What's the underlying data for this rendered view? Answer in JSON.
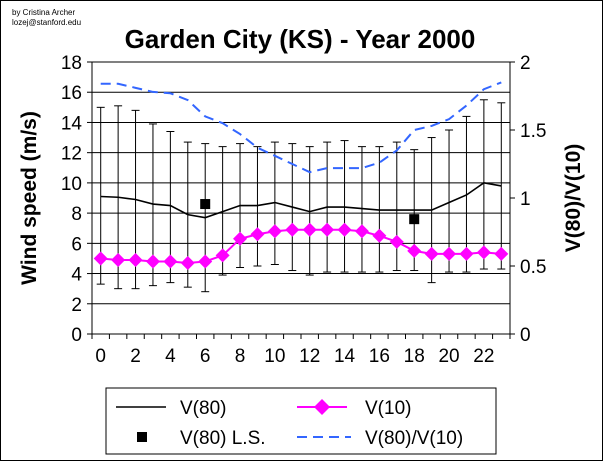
{
  "credits": [
    "by Cristina Archer",
    "lozej@stanford.edu"
  ],
  "chart_data": {
    "type": "line",
    "title": "Garden City (KS) - Year 2000",
    "ylabel": "Wind speed (m/s)",
    "y2label": "V(80)/V(10)",
    "ylim": [
      0,
      18
    ],
    "y_ticks": [
      0,
      2,
      4,
      6,
      8,
      10,
      12,
      14,
      16,
      18
    ],
    "y2lim": [
      0,
      2
    ],
    "y2_ticks": [
      "0",
      "0.5",
      "1",
      "1.5",
      "2"
    ],
    "x": [
      0,
      1,
      2,
      3,
      4,
      5,
      6,
      7,
      8,
      9,
      10,
      11,
      12,
      13,
      14,
      15,
      16,
      17,
      18,
      19,
      20,
      21,
      22,
      23
    ],
    "x_ticks": [
      0,
      2,
      4,
      6,
      8,
      10,
      12,
      14,
      16,
      18,
      20,
      22
    ],
    "grid": "horizontal",
    "legend_position": "bottom",
    "series": [
      {
        "name": "V(80)",
        "axis": "left",
        "style": "solid-line",
        "color": "#000000",
        "values": [
          9.1,
          9.05,
          8.9,
          8.6,
          8.5,
          7.9,
          7.7,
          8.1,
          8.5,
          8.5,
          8.7,
          8.4,
          8.1,
          8.4,
          8.4,
          8.3,
          8.2,
          8.2,
          8.2,
          8.2,
          8.7,
          9.2,
          10.0,
          9.8
        ],
        "error_high": [
          15.0,
          15.1,
          14.8,
          13.9,
          13.4,
          12.7,
          12.6,
          12.4,
          12.6,
          12.4,
          12.7,
          12.6,
          12.4,
          12.7,
          12.8,
          12.4,
          12.4,
          12.7,
          12.2,
          13.0,
          13.5,
          14.4,
          15.5,
          15.3
        ],
        "error_low": [
          3.3,
          3.0,
          3.0,
          3.2,
          3.4,
          3.1,
          2.8,
          3.9,
          4.4,
          4.5,
          4.6,
          4.2,
          3.9,
          4.1,
          4.1,
          4.1,
          4.1,
          4.2,
          4.2,
          3.4,
          4.1,
          4.1,
          4.3,
          4.3
        ]
      },
      {
        "name": "V(10)",
        "axis": "left",
        "style": "diamond-markers",
        "color": "#ff00ff",
        "values": [
          5.0,
          4.9,
          4.9,
          4.8,
          4.8,
          4.7,
          4.8,
          5.2,
          6.3,
          6.6,
          6.8,
          6.9,
          6.9,
          6.9,
          6.9,
          6.8,
          6.5,
          6.1,
          5.5,
          5.3,
          5.3,
          5.3,
          5.4,
          5.3
        ]
      },
      {
        "name": "V(80) L.S.",
        "axis": "left",
        "style": "square-markers",
        "color": "#000000",
        "points": [
          {
            "x": 6,
            "y": 8.6
          },
          {
            "x": 18,
            "y": 7.6
          }
        ]
      },
      {
        "name": "V(80)/V(10)",
        "axis": "right",
        "style": "dashed-line",
        "color": "#3366ff",
        "values": [
          1.84,
          1.84,
          1.81,
          1.78,
          1.77,
          1.72,
          1.6,
          1.55,
          1.47,
          1.37,
          1.31,
          1.25,
          1.19,
          1.22,
          1.22,
          1.22,
          1.26,
          1.35,
          1.5,
          1.53,
          1.58,
          1.68,
          1.8,
          1.85
        ]
      }
    ]
  }
}
